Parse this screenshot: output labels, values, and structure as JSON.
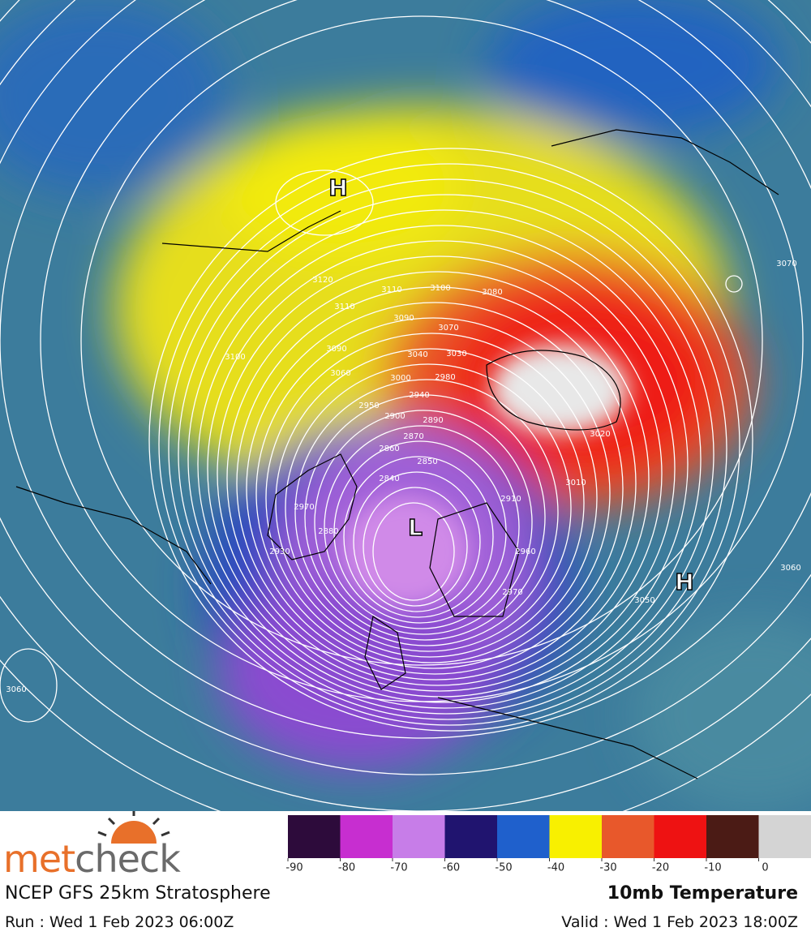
{
  "map": {
    "highs": [
      "H",
      "H"
    ],
    "low": "L",
    "contours": [
      "3120",
      "3110",
      "3110",
      "3100",
      "3090",
      "3080",
      "3070",
      "3090",
      "3060",
      "3040",
      "3030",
      "3000",
      "2980",
      "2940",
      "2950",
      "2900",
      "2890",
      "2870",
      "2860",
      "2850",
      "2840",
      "2880",
      "2930",
      "2970",
      "3010",
      "3020",
      "2910",
      "2960",
      "2970",
      "3050",
      "3060",
      "3070",
      "3060",
      "3100"
    ]
  },
  "legend": {
    "colors": [
      "#2d0b3b",
      "#c72ed0",
      "#c77de8",
      "#20146f",
      "#1f60cc",
      "#f8f000",
      "#e8582b",
      "#ee1212",
      "#4b1b15",
      "#d4d4d4"
    ],
    "ticks": [
      -90,
      -80,
      -70,
      -60,
      -50,
      -40,
      -30,
      -20,
      -10,
      0
    ]
  },
  "branding": {
    "logo_met": "met",
    "logo_check": "check"
  },
  "footer": {
    "model": "NCEP GFS 25km Stratosphere",
    "product": "10mb Temperature",
    "run": "Run : Wed 1 Feb 2023 06:00Z",
    "valid": "Valid : Wed 1 Feb 2023 18:00Z"
  }
}
